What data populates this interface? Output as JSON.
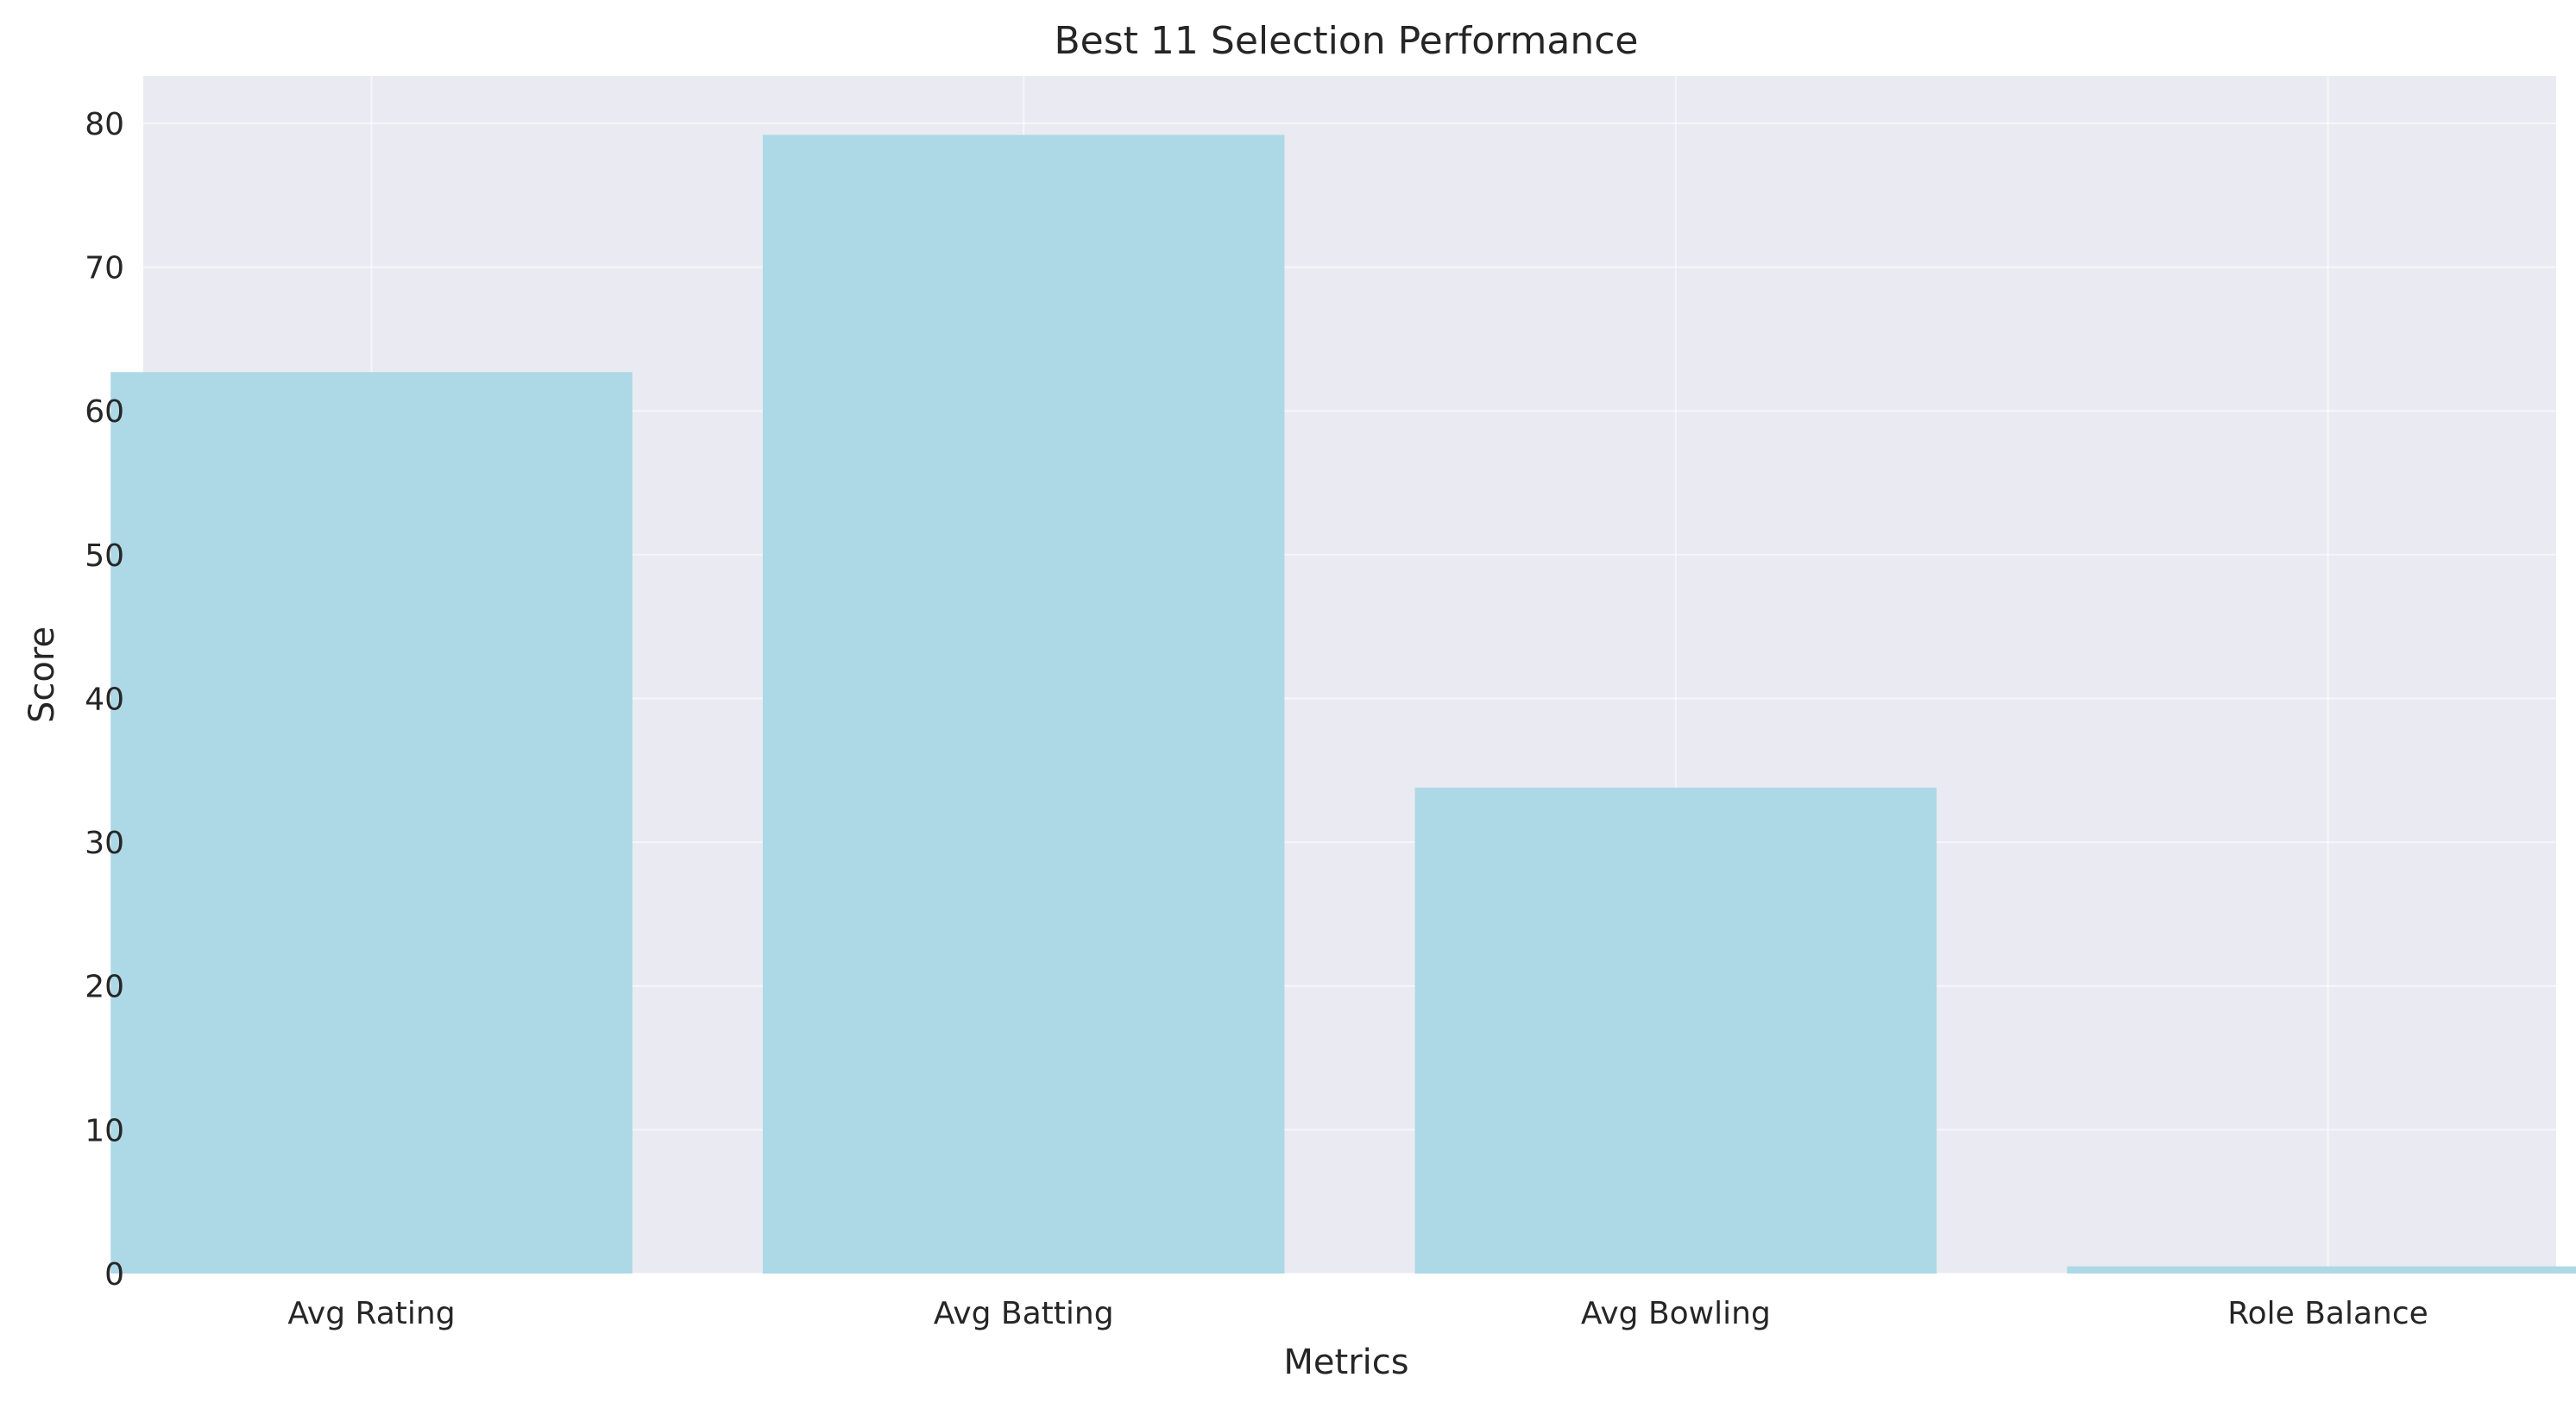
{
  "chart_data": {
    "type": "bar",
    "title": "Best 11 Selection Performance",
    "xlabel": "Metrics",
    "ylabel": "Score",
    "categories": [
      "Avg Rating",
      "Avg Batting",
      "Avg Bowling",
      "Role Balance"
    ],
    "values": [
      62.7,
      79.2,
      33.8,
      0.5
    ],
    "ylim": [
      0,
      83.3
    ],
    "yticks": [
      "0",
      "10",
      "20",
      "30",
      "40",
      "50",
      "60",
      "70",
      "80"
    ],
    "grid": true,
    "colors": {
      "bar": "#add8e6",
      "plot_background": "#eaeaf2",
      "grid": "#ffffff",
      "text": "#262626"
    }
  }
}
